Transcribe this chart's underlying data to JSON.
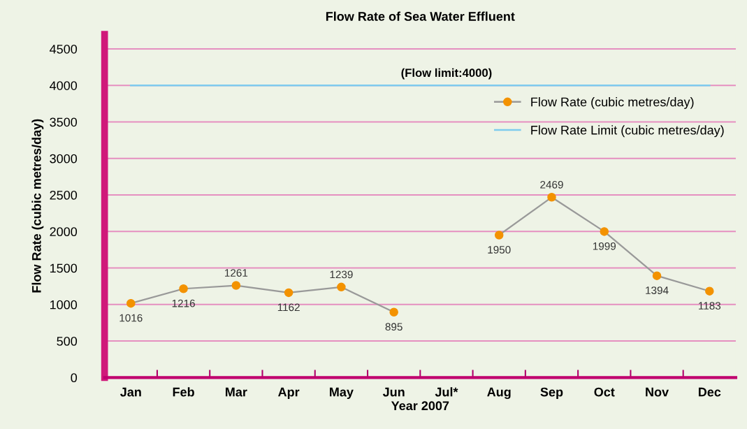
{
  "chart_data": {
    "type": "line",
    "title": "Flow Rate of Sea Water Effluent",
    "xlabel": "Year 2007",
    "ylabel": "Flow Rate (cubic metres/day)",
    "categories": [
      "Jan",
      "Feb",
      "Mar",
      "Apr",
      "May",
      "Jun",
      "Jul*",
      "Aug",
      "Sep",
      "Oct",
      "Nov",
      "Dec"
    ],
    "series": [
      {
        "name": "Flow Rate (cubic metres/day)",
        "color": "#999999",
        "colors": [
          "#f39200",
          "#f39200",
          "#f39200",
          "#f39200",
          "#f39200",
          "#f39200",
          "#f39200",
          "#f39200",
          "#f39200",
          "#f39200",
          "#f39200",
          "#f39200"
        ],
        "marker": "circle",
        "values": [
          1016,
          1216,
          1261,
          1162,
          1239,
          895,
          null,
          1950,
          2469,
          1999,
          1394,
          1183
        ],
        "data_labels": true
      },
      {
        "name": "Flow Rate Limit (cubic metres/day)",
        "color": "#7ecbee",
        "values": [
          4000,
          4000,
          4000,
          4000,
          4000,
          4000,
          4000,
          4000,
          4000,
          4000,
          4000,
          4000
        ]
      }
    ],
    "annotations": [
      {
        "text": "(Flow limit:4000)",
        "x": "Jul*",
        "y": 4000
      }
    ],
    "ylim": [
      0,
      4700
    ],
    "yticks": [
      0,
      500,
      1000,
      1500,
      2000,
      2500,
      3000,
      3500,
      4000,
      4500
    ],
    "grid": "y",
    "legend": "top right"
  }
}
